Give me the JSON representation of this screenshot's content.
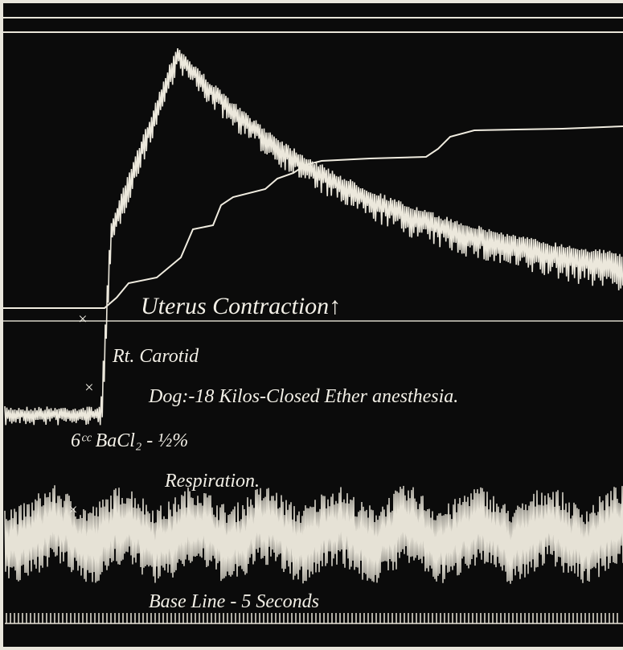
{
  "labels": {
    "uterus": "Uterus Contraction↑",
    "carotid": "Rt. Carotid",
    "subject": "Dog:-18 Kilos-Closed Ether anesthesia.",
    "injection": "6ᶜᶜ BaCl₂ - ½%",
    "respiration": "Respiration.",
    "base_line": "Base Line - 5 Seconds",
    "marks": [
      "×",
      "×",
      "×"
    ]
  }
}
